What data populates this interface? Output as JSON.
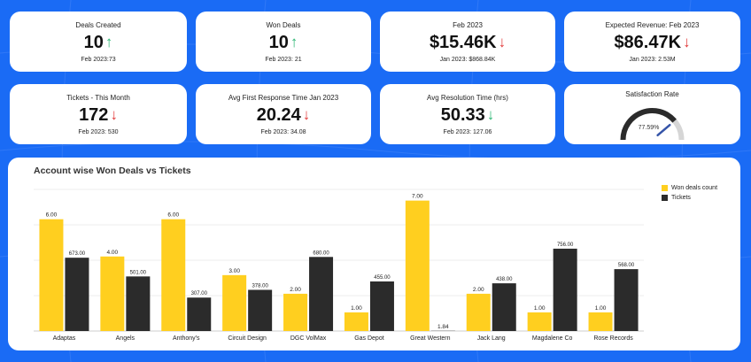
{
  "kpis": [
    {
      "title": "Deals Created",
      "value": "10",
      "trend": "up",
      "sub": "Feb 2023:73"
    },
    {
      "title": "Won Deals",
      "value": "10",
      "trend": "up",
      "sub": "Feb 2023: 21"
    },
    {
      "title": "Feb 2023",
      "value": "$15.46K",
      "trend": "down",
      "sub": "Jan 2023: $868.84K"
    },
    {
      "title": "Expected Revenue: Feb 2023",
      "value": "$86.47K",
      "trend": "down",
      "sub": "Jan 2023: 2.53M"
    },
    {
      "title": "Tickets - This Month",
      "value": "172",
      "trend": "down",
      "sub": "Feb 2023: 530"
    },
    {
      "title": "Avg First Response Time Jan 2023",
      "value": "20.24",
      "trend": "down",
      "sub": "Feb 2023: 34.08"
    },
    {
      "title": "Avg Resolution Time (hrs)",
      "value": "50.33",
      "trend": "down",
      "sub": "Feb 2023: 127.06"
    }
  ],
  "gauge": {
    "title": "Satisfaction Rate",
    "value": 77.59,
    "label": "77.59%",
    "max": 100
  },
  "colors": {
    "won": "#ffcf1f",
    "tickets": "#2b2b2b",
    "up": "#2bb673",
    "down": "#e23b3b",
    "background": "#1a6bf5"
  },
  "chart_data": {
    "type": "bar",
    "title": "Account wise Won Deals vs Tickets",
    "categories": [
      "Adaptas",
      "Angels",
      "Anthony's",
      "Circuit Design",
      "DGC VolMax",
      "Gas Depot",
      "Great Western",
      "Jack Lang",
      "Magdalene Co",
      "Rose Records"
    ],
    "series": [
      {
        "name": "Won deals count",
        "values": [
          6,
          4,
          6,
          3,
          2,
          1,
          7,
          2,
          1,
          1
        ],
        "labels": [
          "6.00",
          "4.00",
          "6.00",
          "3.00",
          "2.00",
          "1.00",
          "7.00",
          "2.00",
          "1.00",
          "1.00"
        ],
        "ylim": [
          0,
          7.6
        ]
      },
      {
        "name": "Tickets",
        "values": [
          673,
          501,
          307,
          378,
          680,
          455,
          1.84,
          438,
          756,
          568
        ],
        "labels": [
          "673.00",
          "501.00",
          "307.00",
          "378.00",
          "680.00",
          "455.00",
          "1.84",
          "438.00",
          "756.00",
          "568.00"
        ],
        "ylim": [
          0,
          1300
        ]
      }
    ],
    "grid": true,
    "legend_position": "top-right"
  }
}
